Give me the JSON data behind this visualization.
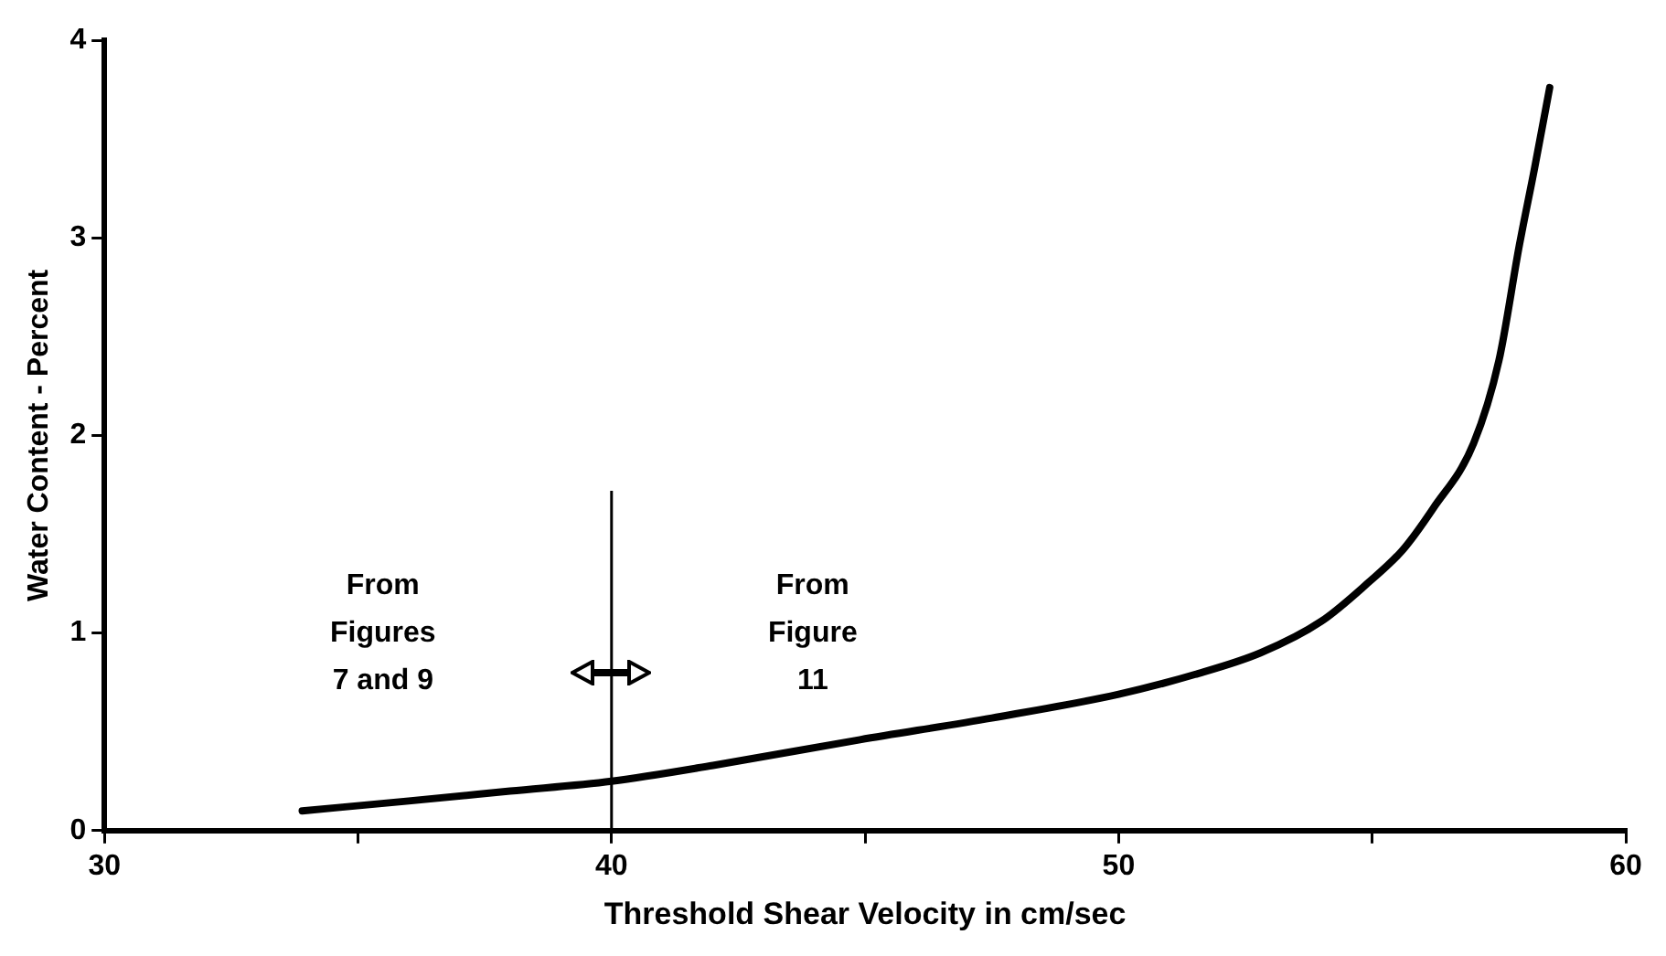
{
  "chart_data": {
    "type": "line",
    "xlabel": "Threshold Shear Velocity in cm/sec",
    "ylabel": "Water Content - Percent",
    "series": [
      {
        "color": "#000000",
        "x": [
          33.9,
          36,
          38,
          40,
          42,
          44.9,
          47.5,
          50,
          51.5,
          52.8,
          54,
          54.9,
          55.6,
          56.2,
          57,
          57.5,
          57.9,
          58.2,
          58.5
        ],
        "values": [
          0.1,
          0.15,
          0.2,
          0.25,
          0.33,
          0.46,
          0.57,
          0.69,
          0.79,
          0.9,
          1.06,
          1.25,
          1.42,
          1.63,
          1.96,
          2.38,
          2.96,
          3.35,
          3.76
        ]
      }
    ],
    "xlim": [
      30,
      60
    ],
    "xticks": [
      30,
      {
        "value": 35,
        "label": null
      },
      40,
      {
        "value": 45,
        "label": null
      },
      50,
      {
        "value": 55,
        "label": null
      },
      60
    ],
    "ylim": [
      0,
      4
    ],
    "yticks": [
      0,
      1,
      2,
      3,
      4
    ],
    "grid": false,
    "legend": false,
    "marker": "none",
    "line_style": "solid",
    "ref_lines": [
      {
        "axis": "x",
        "value": 40,
        "color": "#000000"
      }
    ],
    "annotations": [
      "From\nFigures\n7 and 9",
      "From\nFigure\n11"
    ]
  }
}
